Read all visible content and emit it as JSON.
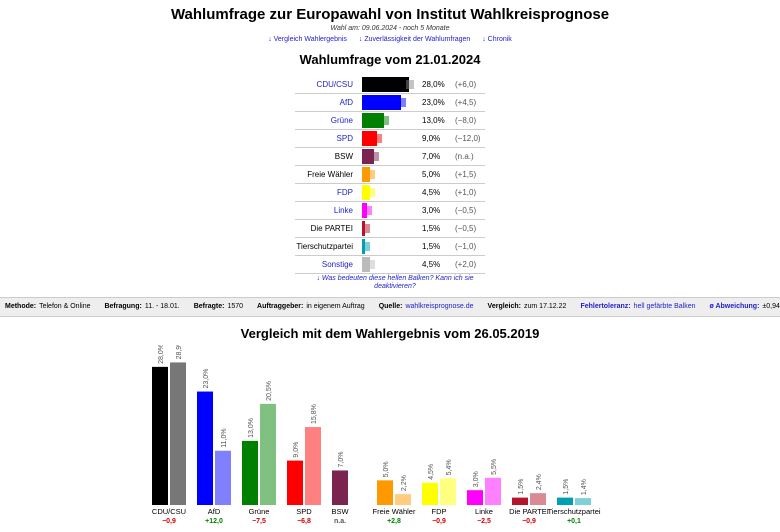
{
  "header": {
    "title": "Wahlumfrage zur Europawahl von Institut Wahlkreisprognose",
    "subline": "Wahl am: 09.06.2024 - noch 5 Monate",
    "links": [
      "↓ Vergleich Wahlergebnis",
      "↓ Zuverlässigkeit der Wahlumfragen",
      "↓ Chronik"
    ]
  },
  "poll": {
    "title": "Wahlumfrage vom 21.01.2024",
    "max_value": 28.0,
    "rows": [
      {
        "party": "CDU/CSU",
        "link": true,
        "value": "28,0%",
        "diff": "(+6,0)",
        "pct": 28.0,
        "color": "#000000"
      },
      {
        "party": "AfD",
        "link": true,
        "value": "23,0%",
        "diff": "(+4,5)",
        "pct": 23.0,
        "color": "#0000ff"
      },
      {
        "party": "Grüne",
        "link": true,
        "value": "13,0%",
        "diff": "(−8,0)",
        "pct": 13.0,
        "color": "#008000"
      },
      {
        "party": "SPD",
        "link": true,
        "value": "9,0%",
        "diff": "(−12,0)",
        "pct": 9.0,
        "color": "#ff0000"
      },
      {
        "party": "BSW",
        "link": false,
        "value": "7,0%",
        "diff": "(n.a.)",
        "pct": 7.0,
        "color": "#7b2450"
      },
      {
        "party": "Freie Wähler",
        "link": false,
        "value": "5,0%",
        "diff": "(+1,5)",
        "pct": 5.0,
        "color": "#ff9900"
      },
      {
        "party": "FDP",
        "link": true,
        "value": "4,5%",
        "diff": "(+1,0)",
        "pct": 4.5,
        "color": "#ffff00"
      },
      {
        "party": "Linke",
        "link": true,
        "value": "3,0%",
        "diff": "(−0,5)",
        "pct": 3.0,
        "color": "#ff00ff"
      },
      {
        "party": "Die PARTEI",
        "link": false,
        "value": "1,5%",
        "diff": "(−0,5)",
        "pct": 1.5,
        "color": "#b5152b"
      },
      {
        "party": "Tierschutzpartei",
        "link": false,
        "value": "1,5%",
        "diff": "(−1,0)",
        "pct": 1.5,
        "color": "#00a0b0"
      },
      {
        "party": "Sonstige",
        "link": true,
        "value": "4,5%",
        "diff": "(+2,0)",
        "pct": 4.5,
        "color": "#bbbbbb"
      }
    ],
    "note": "↓ Was bedeuten diese hellen Balken? Kann ich sie deaktivieren?"
  },
  "meta": [
    {
      "label": "Methode:",
      "value": "Telefon & Online",
      "link": false
    },
    {
      "label": "Befragung:",
      "value": "11. - 18.01.",
      "link": false
    },
    {
      "label": "Befragte:",
      "value": "1570",
      "link": false
    },
    {
      "label": "Auftraggeber:",
      "value": "in eigenem Auftrag",
      "link": false
    },
    {
      "label": "Quelle:",
      "value": "wahlkreisprognose.de",
      "link": true
    },
    {
      "label": "Vergleich:",
      "value": "zum 17.12.22",
      "link": false
    },
    {
      "label": "Fehlertoleranz:",
      "value": "hell gefärbte Balken",
      "link": true,
      "label_link": true
    },
    {
      "label": "ø Abweichung:",
      "value": "±0,94",
      "link": false,
      "label_link": true
    }
  ],
  "comparison": {
    "title": "Vergleich mit dem Wahlergebnis vom 26.05.2019"
  },
  "chart_data": {
    "type": "bar",
    "categories": [
      "CDU/CSU",
      "AfD",
      "Grüne",
      "SPD",
      "BSW",
      "Freie Wähler",
      "FDP",
      "Linke",
      "Die PARTEI",
      "Tierschutzpartei"
    ],
    "series": [
      {
        "values": [
          28.0,
          23.0,
          13.0,
          9.0,
          7.0,
          5.0,
          4.5,
          3.0,
          1.5,
          1.5
        ],
        "labels": [
          "28,0%",
          "23,0%",
          "13,0%",
          "9,0%",
          "7,0%",
          "5,0%",
          "4,5%",
          "3,0%",
          "1,5%",
          "1,5%"
        ]
      },
      {
        "values": [
          28.9,
          11.0,
          20.5,
          15.8,
          null,
          2.2,
          5.4,
          5.5,
          2.4,
          1.4
        ],
        "labels": [
          "28,9%",
          "11,0%",
          "20,5%",
          "15,8%",
          "",
          "2,2%",
          "5,4%",
          "5,5%",
          "2,4%",
          "1,4%"
        ]
      }
    ],
    "colors_poll": [
      "#000000",
      "#0000ff",
      "#008000",
      "#ff0000",
      "#7b2450",
      "#ff9900",
      "#ffff00",
      "#ff00ff",
      "#b5152b",
      "#00a0b0"
    ],
    "colors_2019": [
      "#777777",
      "#8080ff",
      "#80c080",
      "#ff8080",
      "",
      "#ffcc80",
      "#ffff80",
      "#ff80ff",
      "#da8a95",
      "#80d0d8"
    ],
    "diffs": [
      "−0,9",
      "+12,0",
      "−7,5",
      "−6,8",
      "n.a.",
      "+2,8",
      "−0,9",
      "−2,5",
      "−0,9",
      "+0,1"
    ],
    "ylim": [
      0,
      30
    ]
  }
}
